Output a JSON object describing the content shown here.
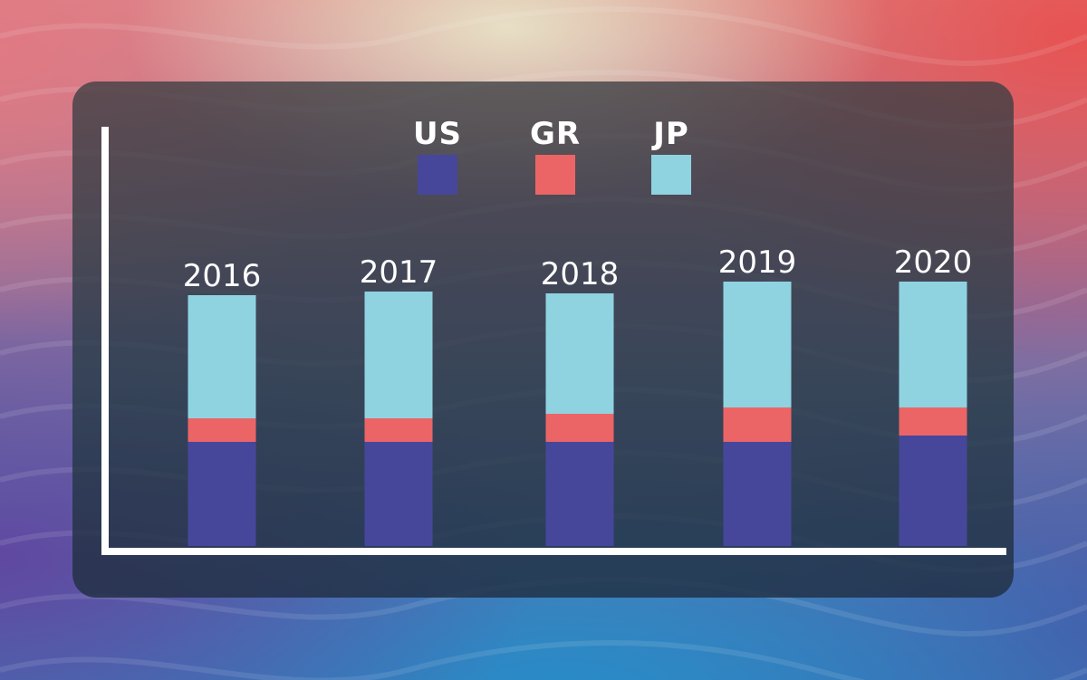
{
  "chart_data": {
    "type": "bar",
    "stacked": true,
    "categories": [
      "2016",
      "2017",
      "2018",
      "2019",
      "2020"
    ],
    "series": [
      {
        "name": "US",
        "color": "#46479b",
        "values": [
          115,
          115,
          115,
          115,
          122
        ]
      },
      {
        "name": "GR",
        "color": "#ec6566",
        "values": [
          26,
          26,
          31,
          38,
          31
        ]
      },
      {
        "name": "JP",
        "color": "#8fd3e1",
        "values": [
          136,
          140,
          133,
          139,
          139
        ]
      }
    ],
    "ylim": [
      0,
      300
    ],
    "title": "",
    "xlabel": "",
    "ylabel": "",
    "axes_color": "#ffffff",
    "legend_position": "top-center"
  }
}
